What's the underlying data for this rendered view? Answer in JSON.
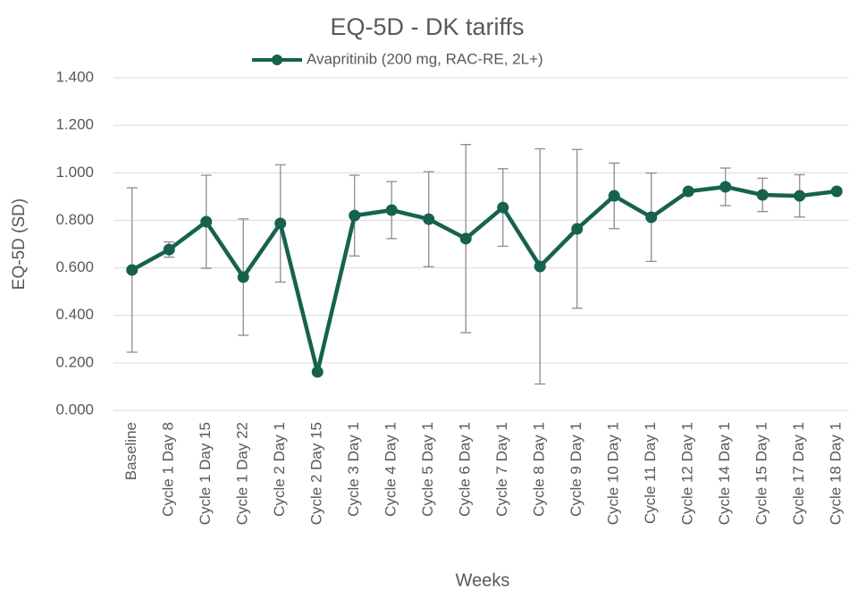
{
  "chart_data": {
    "type": "line",
    "title": "EQ-5D - DK tariffs",
    "x_label": "Weeks",
    "y_label": "EQ-5D (SD)",
    "categories": [
      "Baseline",
      "Cycle 1 Day 8",
      "Cycle 1 Day 15",
      "Cycle 1 Day 22",
      "Cycle 2 Day 1",
      "Cycle 2 Day 15",
      "Cycle 3 Day 1",
      "Cycle 4 Day 1",
      "Cycle 5 Day 1",
      "Cycle 6 Day 1",
      "Cycle 7 Day 1",
      "Cycle 8 Day 1",
      "Cycle 9 Day 1",
      "Cycle 10 Day 1",
      "Cycle 11 Day 1",
      "Cycle 12 Day 1",
      "Cycle 14 Day 1",
      "Cycle 15 Day 1",
      "Cycle 17 Day 1",
      "Cycle 18 Day 1"
    ],
    "series": [
      {
        "name": "Avapritinib (200 mg, RAC-RE, 2L+)",
        "color": "#17614f",
        "values": [
          0.591,
          0.677,
          0.794,
          0.561,
          0.787,
          0.162,
          0.82,
          0.843,
          0.805,
          0.723,
          0.854,
          0.606,
          0.764,
          0.903,
          0.813,
          0.922,
          0.941,
          0.907,
          0.903,
          0.922
        ],
        "errors": [
          0.346,
          0.032,
          0.196,
          0.245,
          0.247,
          null,
          0.17,
          0.12,
          0.2,
          0.396,
          0.163,
          0.495,
          0.334,
          0.138,
          0.186,
          null,
          0.079,
          0.07,
          0.089,
          null
        ]
      }
    ],
    "ylim": [
      0,
      1.4
    ],
    "yticks": [
      {
        "value": 0,
        "label": "0.000"
      },
      {
        "value": 0.2,
        "label": "0.200"
      },
      {
        "value": 0.4,
        "label": "0.400"
      },
      {
        "value": 0.6,
        "label": "0.600"
      },
      {
        "value": 0.8,
        "label": "0.800"
      },
      {
        "value": 1.0,
        "label": "1.000"
      },
      {
        "value": 1.2,
        "label": "1.200"
      },
      {
        "value": 1.4,
        "label": "1.400"
      }
    ],
    "grid": true,
    "error_color": "#8c8c8c"
  }
}
